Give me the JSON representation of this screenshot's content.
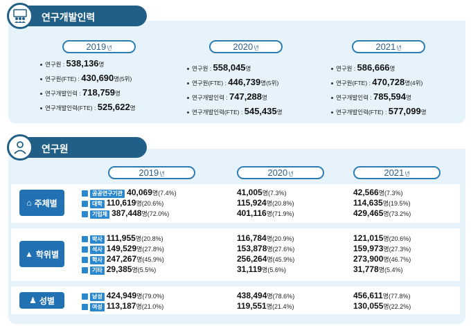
{
  "section1": {
    "title": "연구개발인력",
    "years": [
      {
        "label": "2019",
        "suffix": "년",
        "rows": [
          {
            "label": "연구원 : ",
            "value": "538,136",
            "unit": "명",
            "extra": ""
          },
          {
            "label": "연구원(FTE) : ",
            "value": "430,690",
            "unit": "명",
            "extra": "(5위)"
          },
          {
            "label": "연구개발인력 : ",
            "value": "718,759",
            "unit": "명",
            "extra": ""
          },
          {
            "label": "연구개발인력(FTE) : ",
            "value": "525,622",
            "unit": "명",
            "extra": ""
          }
        ]
      },
      {
        "label": "2020",
        "suffix": "년",
        "rows": [
          {
            "label": "연구원 : ",
            "value": "558,045",
            "unit": "명",
            "extra": ""
          },
          {
            "label": "연구원(FTE) : ",
            "value": "446,739",
            "unit": "명",
            "extra": "(5위)"
          },
          {
            "label": "연구개발인력 : ",
            "value": "747,288",
            "unit": "명",
            "extra": ""
          },
          {
            "label": "연구개발인력(FTE) : ",
            "value": "545,435",
            "unit": "명",
            "extra": ""
          }
        ]
      },
      {
        "label": "2021",
        "suffix": "년",
        "rows": [
          {
            "label": "연구원 : ",
            "value": "586,666",
            "unit": "명",
            "extra": ""
          },
          {
            "label": "연구원(FTE) : ",
            "value": "470,728",
            "unit": "명",
            "extra": "(4위)"
          },
          {
            "label": "연구개발인력 : ",
            "value": "785,594",
            "unit": "명",
            "extra": ""
          },
          {
            "label": "연구개발인력(FTE) : ",
            "value": "577,099",
            "unit": "명",
            "extra": ""
          }
        ]
      }
    ]
  },
  "section2": {
    "title": "연구원",
    "years": [
      {
        "label": "2019",
        "suffix": "년"
      },
      {
        "label": "2020",
        "suffix": "년"
      },
      {
        "label": "2021",
        "suffix": "년"
      }
    ],
    "groups": [
      {
        "label": "주체별",
        "rows": [
          {
            "tag": "공공연구기관",
            "v2019": "40,069",
            "p2019": "(7.4%)",
            "v2020": "41,005",
            "p2020": "(7.3%)",
            "v2021": "42,566",
            "p2021": "(7.3%)"
          },
          {
            "tag": "대학",
            "v2019": "110,619",
            "p2019": "(20.6%)",
            "v2020": "115,924",
            "p2020": "(20.8%)",
            "v2021": "114,635",
            "p2021": "(19.5%)"
          },
          {
            "tag": "기업체",
            "v2019": "387,448",
            "p2019": "(72.0%)",
            "v2020": "401,116",
            "p2020": "(71.9%)",
            "v2021": "429,465",
            "p2021": "(73.2%)"
          }
        ]
      },
      {
        "label": "학위별",
        "rows": [
          {
            "tag": "박사",
            "v2019": "111,955",
            "p2019": "(20.8%)",
            "v2020": "116,784",
            "p2020": "(20.9%)",
            "v2021": "121,015",
            "p2021": "(20.6%)"
          },
          {
            "tag": "석사",
            "v2019": "149,529",
            "p2019": "(27.8%)",
            "v2020": "153,878",
            "p2020": "(27.6%)",
            "v2021": "159,973",
            "p2021": "(27.3%)"
          },
          {
            "tag": "학사",
            "v2019": "247,267",
            "p2019": "(45.9%)",
            "v2020": "256,264",
            "p2020": "(45.9%)",
            "v2021": "273,900",
            "p2021": "(46.7%)"
          },
          {
            "tag": "기타",
            "v2019": "29,385",
            "p2019": "(5.5%)",
            "v2020": "31,119",
            "p2020": "(5.6%)",
            "v2021": "31,778",
            "p2021": "(5.4%)"
          }
        ]
      },
      {
        "label": "성별",
        "rows": [
          {
            "tag": "남성",
            "v2019": "424,949",
            "p2019": "(79.0%)",
            "v2020": "438,494",
            "p2020": "(78.6%)",
            "v2021": "456,611",
            "p2021": "(77.8%)"
          },
          {
            "tag": "여성",
            "v2019": "113,187",
            "p2019": "(21.0%)",
            "v2020": "119,551",
            "p2020": "(21.4%)",
            "v2021": "130,055",
            "p2021": "(22.2%)"
          }
        ]
      }
    ],
    "unit": "명"
  }
}
